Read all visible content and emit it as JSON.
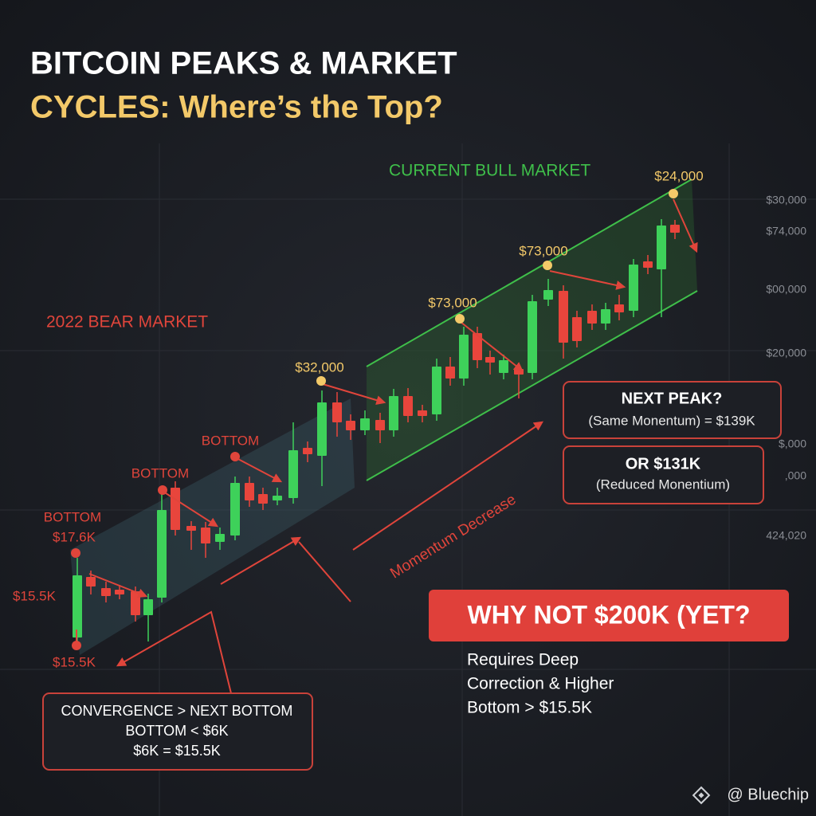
{
  "title": {
    "line1": "BITCOIN PEAKS & MARKET",
    "line2": "CYCLES: Where’s the Top?"
  },
  "zones": {
    "bull": "CURRENT BULL MARKET",
    "bear": "2022 BEAR MARKET",
    "momentum": "Momentum Decrease"
  },
  "callouts": {
    "peak_top": "$24,000",
    "peak_3": "$73,000",
    "peak_2": "$73,000",
    "peak_1": "$32,000",
    "bottom_3": "BOTTOM",
    "bottom_2": "BOTTOM",
    "bottom_1": "BOTTOM",
    "bottom_1_price": "$17.6K",
    "left_price": "$15.5K",
    "low_price": "$15.5K"
  },
  "side_axis": [
    "$30,000",
    "$74,000",
    "$00,000",
    "$20,000",
    "$,000",
    ",000",
    "424,020"
  ],
  "next_peak_box": {
    "title": "NEXT PEAK?",
    "text": "(Same Monentum) = $139K"
  },
  "alt_box": {
    "title": "OR $131K",
    "text": "(Reduced Monentium)"
  },
  "convergence_box": [
    "CONVERGENCE > NEXT BOTTOM",
    "BOTTOM < $6K",
    "$6K = $15.5K"
  ],
  "why_box": {
    "title": "WHY NOT $200K (YET?",
    "lines": [
      "Requires Deep",
      "Correction & Higher",
      "Bottom > $15.5K"
    ]
  },
  "brand": "@ Bluechip"
}
